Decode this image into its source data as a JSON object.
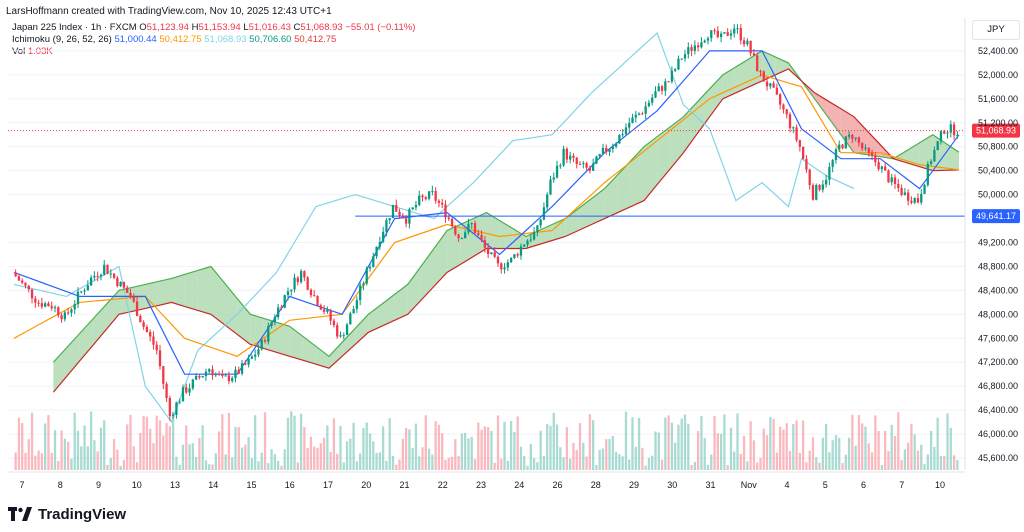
{
  "header": {
    "attribution": "LarsHoffmann created with TradingView.com, Nov 10, 2025 12:43 UTC+1",
    "symbol_line": {
      "name": "Japan 225 Index · 1h · FXCM",
      "o_label": "O",
      "o_value": "51,123.94",
      "h_label": "H",
      "h_value": "51,153.94",
      "l_label": "L",
      "l_value": "51,016.43",
      "c_label": "C",
      "c_value": "51,068.93",
      "change": "−55.01 (−0.11%)"
    },
    "ichimoku_line": {
      "name": "Ichimoku (9, 26, 52, 26)",
      "v1": "51,000.44",
      "v2": "50,412.75",
      "v3": "51,068.93",
      "v4": "50,706.60",
      "v5": "50,412.75"
    },
    "vol_line": {
      "name": "Vol",
      "value": "1.03K"
    },
    "currency": "JPY"
  },
  "footer": {
    "brand": "TradingView"
  },
  "colors": {
    "up": "#089981",
    "down": "#f23645",
    "tenkan": "#2962ff",
    "kijun": "#ff9800",
    "chikou": "#7fd4e8",
    "span_a": "#4caf50",
    "span_b": "#c62828",
    "cloud_bull": "#a5d6a7",
    "cloud_bear": "#ef9a9a",
    "hline": "#2962ff"
  },
  "chart_data": {
    "type": "candlestick",
    "timeframe": "1h",
    "y_range": [
      45400,
      52950
    ],
    "y_ticks": [
      "52,400.00",
      "52,000.00",
      "51,600.00",
      "51,200.00",
      "50,800.00",
      "50,400.00",
      "50,000.00",
      "49,200.00",
      "48,800.00",
      "48,400.00",
      "48,000.00",
      "47,600.00",
      "47,200.00",
      "46,800.00",
      "46,400.00",
      "46,000.00",
      "45,600.00"
    ],
    "y_tick_values": [
      52400,
      52000,
      51600,
      51200,
      50800,
      50400,
      50000,
      49200,
      48800,
      48400,
      48000,
      47600,
      47200,
      46800,
      46400,
      46000,
      45600
    ],
    "x_labels": [
      "7",
      "8",
      "9",
      "10",
      "13",
      "14",
      "15",
      "16",
      "17",
      "20",
      "21",
      "22",
      "23",
      "24",
      "26",
      "28",
      "29",
      "30",
      "31",
      "Nov",
      "4",
      "5",
      "6",
      "7",
      "10"
    ],
    "price_label": "51,068.93",
    "price_value": 51068.93,
    "hline_label": "49,641.17",
    "hline_value": 49641.17,
    "close_path": [
      [
        0,
        48700
      ],
      [
        1,
        48450
      ],
      [
        2,
        48200
      ],
      [
        3,
        48150
      ],
      [
        4,
        47950
      ],
      [
        5,
        48300
      ],
      [
        6,
        48600
      ],
      [
        7,
        48800
      ],
      [
        8,
        48550
      ],
      [
        9,
        48300
      ],
      [
        10,
        47800
      ],
      [
        11,
        47400
      ],
      [
        12,
        46300
      ],
      [
        13,
        46700
      ],
      [
        14,
        46900
      ],
      [
        15,
        47100
      ],
      [
        16,
        46900
      ],
      [
        17,
        47000
      ],
      [
        18,
        47200
      ],
      [
        19,
        47500
      ],
      [
        20,
        48000
      ],
      [
        21,
        48400
      ],
      [
        22,
        48700
      ],
      [
        23,
        48300
      ],
      [
        24,
        48000
      ],
      [
        25,
        47600
      ],
      [
        26,
        48100
      ],
      [
        27,
        48700
      ],
      [
        28,
        49300
      ],
      [
        29,
        49800
      ],
      [
        30,
        49600
      ],
      [
        31,
        49900
      ],
      [
        32,
        50000
      ],
      [
        33,
        49700
      ],
      [
        34,
        49300
      ],
      [
        35,
        49500
      ],
      [
        36,
        49100
      ],
      [
        37,
        48800
      ],
      [
        38,
        48900
      ],
      [
        39,
        49200
      ],
      [
        40,
        49400
      ],
      [
        41,
        50200
      ],
      [
        42,
        50700
      ],
      [
        43,
        50500
      ],
      [
        44,
        50400
      ],
      [
        45,
        50700
      ],
      [
        46,
        50900
      ],
      [
        47,
        51200
      ],
      [
        48,
        51400
      ],
      [
        49,
        51700
      ],
      [
        50,
        51900
      ],
      [
        51,
        52300
      ],
      [
        52,
        52500
      ],
      [
        53,
        52700
      ],
      [
        54,
        52600
      ],
      [
        55,
        52800
      ],
      [
        56,
        52500
      ],
      [
        57,
        52000
      ],
      [
        58,
        51700
      ],
      [
        59,
        51300
      ],
      [
        60,
        50800
      ],
      [
        61,
        50000
      ],
      [
        62,
        50300
      ],
      [
        63,
        50800
      ],
      [
        64,
        51000
      ],
      [
        65,
        50700
      ],
      [
        66,
        50500
      ],
      [
        67,
        50200
      ],
      [
        68,
        50000
      ],
      [
        69,
        49900
      ],
      [
        70,
        50600
      ],
      [
        71,
        51100
      ],
      [
        72,
        51069
      ]
    ],
    "tenkan_path": [
      [
        0,
        48700
      ],
      [
        5,
        48300
      ],
      [
        10,
        48300
      ],
      [
        13,
        47000
      ],
      [
        17,
        47000
      ],
      [
        21,
        48300
      ],
      [
        25,
        48000
      ],
      [
        29,
        49600
      ],
      [
        33,
        49700
      ],
      [
        37,
        49000
      ],
      [
        41,
        49800
      ],
      [
        45,
        50700
      ],
      [
        49,
        51400
      ],
      [
        53,
        52400
      ],
      [
        57,
        52400
      ],
      [
        60,
        51100
      ],
      [
        63,
        50600
      ],
      [
        66,
        50600
      ],
      [
        69,
        50100
      ],
      [
        72,
        51000
      ]
    ],
    "kijun_path": [
      [
        0,
        47600
      ],
      [
        5,
        48200
      ],
      [
        10,
        48300
      ],
      [
        13,
        47600
      ],
      [
        17,
        47300
      ],
      [
        21,
        47900
      ],
      [
        25,
        48000
      ],
      [
        29,
        49200
      ],
      [
        33,
        49500
      ],
      [
        37,
        49300
      ],
      [
        41,
        49400
      ],
      [
        45,
        50200
      ],
      [
        49,
        50900
      ],
      [
        53,
        51600
      ],
      [
        57,
        52000
      ],
      [
        60,
        51800
      ],
      [
        63,
        50700
      ],
      [
        66,
        50700
      ],
      [
        69,
        50500
      ],
      [
        72,
        50413
      ]
    ],
    "chikou_path": [
      [
        0,
        48500
      ],
      [
        4,
        48300
      ],
      [
        8,
        48800
      ],
      [
        10,
        46800
      ],
      [
        12,
        46200
      ],
      [
        14,
        47400
      ],
      [
        17,
        48000
      ],
      [
        20,
        48700
      ],
      [
        23,
        49800
      ],
      [
        26,
        50000
      ],
      [
        29,
        49800
      ],
      [
        32,
        49600
      ],
      [
        35,
        50200
      ],
      [
        38,
        50900
      ],
      [
        41,
        51000
      ],
      [
        44,
        51700
      ],
      [
        47,
        52300
      ],
      [
        49,
        52700
      ],
      [
        51,
        51500
      ],
      [
        53,
        51100
      ],
      [
        55,
        49900
      ],
      [
        57,
        50200
      ],
      [
        59,
        49800
      ],
      [
        60,
        50600
      ],
      [
        62,
        50300
      ],
      [
        64,
        50100
      ]
    ],
    "span_a_path": [
      [
        3,
        47200
      ],
      [
        8,
        48400
      ],
      [
        12,
        48600
      ],
      [
        15,
        48800
      ],
      [
        18,
        48000
      ],
      [
        21,
        47800
      ],
      [
        24,
        47300
      ],
      [
        27,
        48000
      ],
      [
        30,
        48500
      ],
      [
        33,
        49400
      ],
      [
        36,
        49700
      ],
      [
        39,
        49300
      ],
      [
        42,
        49600
      ],
      [
        45,
        50100
      ],
      [
        48,
        50800
      ],
      [
        51,
        51300
      ],
      [
        54,
        52000
      ],
      [
        57,
        52400
      ],
      [
        59,
        52200
      ],
      [
        61,
        51600
      ],
      [
        64,
        50700
      ],
      [
        67,
        50600
      ],
      [
        70,
        51000
      ],
      [
        72,
        50707
      ]
    ],
    "span_b_path": [
      [
        3,
        46700
      ],
      [
        8,
        48000
      ],
      [
        12,
        48200
      ],
      [
        15,
        48000
      ],
      [
        18,
        47500
      ],
      [
        21,
        47300
      ],
      [
        24,
        47100
      ],
      [
        27,
        47700
      ],
      [
        30,
        48000
      ],
      [
        33,
        48700
      ],
      [
        36,
        49100
      ],
      [
        39,
        49100
      ],
      [
        42,
        49300
      ],
      [
        45,
        49600
      ],
      [
        48,
        49900
      ],
      [
        51,
        50700
      ],
      [
        54,
        51600
      ],
      [
        57,
        51900
      ],
      [
        59,
        52100
      ],
      [
        61,
        51700
      ],
      [
        64,
        51300
      ],
      [
        67,
        50600
      ],
      [
        70,
        50400
      ],
      [
        72,
        50413
      ]
    ]
  }
}
